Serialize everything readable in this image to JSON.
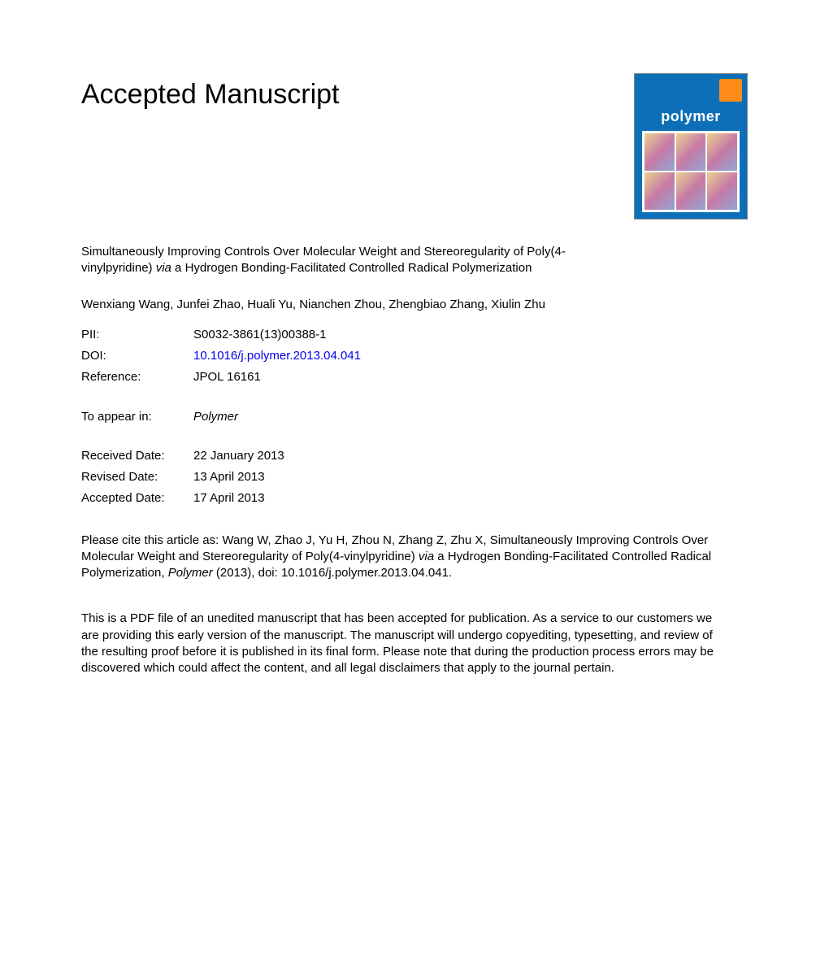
{
  "heading": "Accepted Manuscript",
  "cover": {
    "journal": "polymer"
  },
  "title_prefix": "Simultaneously Improving Controls Over Molecular Weight and Stereoregularity of Poly(4-vinylpyridine) ",
  "title_italic": "via",
  "title_suffix": " a Hydrogen Bonding-Facilitated Controlled Radical Polymerization",
  "authors": "Wenxiang Wang, Junfei Zhao, Huali Yu, Nianchen Zhou, Zhengbiao Zhang, Xiulin Zhu",
  "meta": {
    "pii_label": "PII:",
    "pii_value": "S0032-3861(13)00388-1",
    "doi_label": "DOI:",
    "doi_value": "10.1016/j.polymer.2013.04.041",
    "reference_label": "Reference:",
    "reference_value": "JPOL 16161",
    "appear_label": "To appear in:",
    "appear_value": "Polymer",
    "received_label": "Received Date:",
    "received_value": "22 January 2013",
    "revised_label": "Revised Date:",
    "revised_value": "13 April 2013",
    "accepted_label": "Accepted Date:",
    "accepted_value": "17 April 2013"
  },
  "citation_prefix": "Please cite this article as: Wang W, Zhao J, Yu H, Zhou N, Zhang Z, Zhu X, Simultaneously Improving Controls Over Molecular Weight and Stereoregularity of Poly(4-vinylpyridine) ",
  "citation_italic1": "via",
  "citation_mid": " a Hydrogen Bonding-Facilitated Controlled Radical Polymerization, ",
  "citation_italic2": "Polymer",
  "citation_suffix": " (2013), doi: 10.1016/j.polymer.2013.04.041.",
  "disclaimer": "This is a PDF file of an unedited manuscript that has been accepted for publication. As a service to our customers we are providing this early version of the manuscript. The manuscript will undergo copyediting, typesetting, and review of the resulting proof before it is published in its final form. Please note that during the production process errors may be discovered which could affect the content, and all legal disclaimers that apply to the journal pertain."
}
